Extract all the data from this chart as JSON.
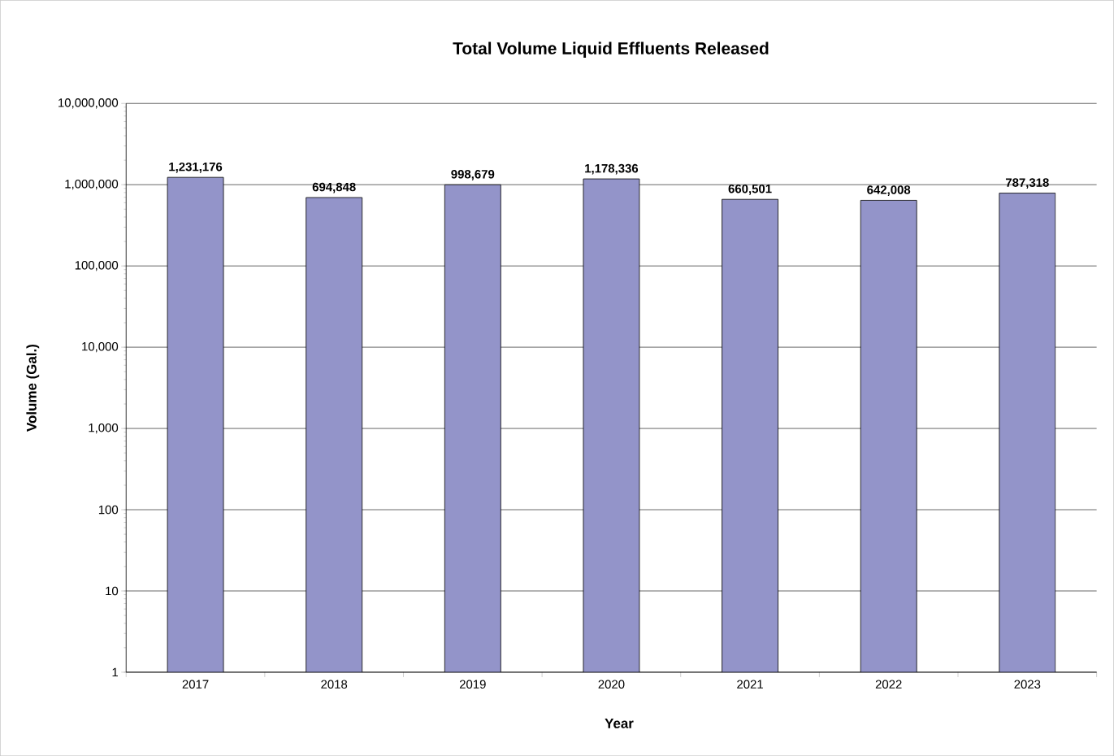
{
  "chart_data": {
    "type": "bar",
    "title": "Total Volume Liquid Effluents Released",
    "xlabel": "Year",
    "ylabel": "Volume (Gal.)",
    "categories": [
      "2017",
      "2018",
      "2019",
      "2020",
      "2021",
      "2022",
      "2023"
    ],
    "values": [
      1231176,
      694848,
      998679,
      1178336,
      660501,
      642008,
      787318
    ],
    "value_labels": [
      "1,231,176",
      "694,848",
      "998,679",
      "1,178,336",
      "660,501",
      "642,008",
      "787,318"
    ],
    "color": "#9394c9",
    "log": "y",
    "grid": "y",
    "ylim": [
      1,
      10000000
    ],
    "yticks": [
      1,
      10,
      100,
      {
        "value": 1000,
        "label": "1,000"
      },
      {
        "value": 10000,
        "label": "10,000"
      },
      {
        "value": 100000,
        "label": "100,000"
      },
      {
        "value": 1000000,
        "label": "1,000,000"
      },
      {
        "value": 10000000,
        "label": "10,000,000"
      }
    ]
  }
}
